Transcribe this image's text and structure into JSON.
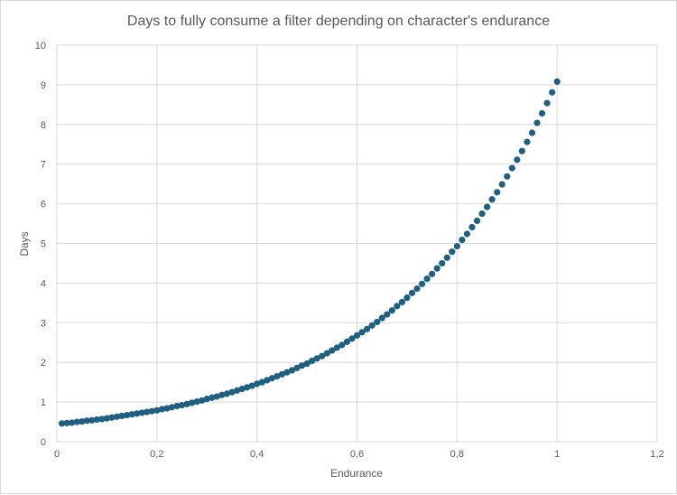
{
  "chart_data": {
    "type": "scatter",
    "title": "Days to fully consume a filter depending on character's endurance",
    "xlabel": "Endurance",
    "ylabel": "Days",
    "xlim": [
      0,
      1.2
    ],
    "ylim": [
      0,
      10
    ],
    "x_ticks": [
      0,
      0.2,
      0.4,
      0.6,
      0.8,
      1,
      1.2
    ],
    "x_tick_labels": [
      "0",
      "0,2",
      "0,4",
      "0,6",
      "0,8",
      "1",
      "1,2"
    ],
    "y_ticks": [
      0,
      1,
      2,
      3,
      4,
      5,
      6,
      7,
      8,
      9,
      10
    ],
    "y_tick_labels": [
      "0",
      "1",
      "2",
      "3",
      "4",
      "5",
      "6",
      "7",
      "8",
      "9",
      "10"
    ],
    "grid": true,
    "legend": "none",
    "colors": {
      "marker": "#1f5f7f",
      "grid": "#d9d9d9",
      "text": "#595959"
    },
    "series": [
      {
        "name": "Days",
        "x": [
          0.01,
          0.02,
          0.03,
          0.04,
          0.05,
          0.06,
          0.07,
          0.08,
          0.09,
          0.1,
          0.11,
          0.12,
          0.13,
          0.14,
          0.15,
          0.16,
          0.17,
          0.18,
          0.19,
          0.2,
          0.21,
          0.22,
          0.23,
          0.24,
          0.25,
          0.26,
          0.27,
          0.28,
          0.29,
          0.3,
          0.31,
          0.32,
          0.33,
          0.34,
          0.35,
          0.36,
          0.37,
          0.38,
          0.39,
          0.4,
          0.41,
          0.42,
          0.43,
          0.44,
          0.45,
          0.46,
          0.47,
          0.48,
          0.49,
          0.5,
          0.51,
          0.52,
          0.53,
          0.54,
          0.55,
          0.56,
          0.57,
          0.58,
          0.59,
          0.6,
          0.61,
          0.62,
          0.63,
          0.64,
          0.65,
          0.66,
          0.67,
          0.68,
          0.69,
          0.7,
          0.71,
          0.72,
          0.73,
          0.74,
          0.75,
          0.76,
          0.77,
          0.78,
          0.79,
          0.8,
          0.81,
          0.82,
          0.83,
          0.84,
          0.85,
          0.86,
          0.87,
          0.88,
          0.89,
          0.9,
          0.91,
          0.92,
          0.93,
          0.94,
          0.95,
          0.96,
          0.97,
          0.98,
          0.99,
          1.0
        ],
        "y": [
          0.46,
          0.47,
          0.48,
          0.5,
          0.51,
          0.53,
          0.54,
          0.56,
          0.57,
          0.59,
          0.61,
          0.63,
          0.65,
          0.67,
          0.69,
          0.71,
          0.73,
          0.75,
          0.77,
          0.79,
          0.82,
          0.84,
          0.87,
          0.9,
          0.92,
          0.95,
          0.98,
          1.01,
          1.04,
          1.08,
          1.11,
          1.14,
          1.18,
          1.21,
          1.25,
          1.29,
          1.33,
          1.37,
          1.41,
          1.46,
          1.5,
          1.55,
          1.6,
          1.65,
          1.7,
          1.75,
          1.8,
          1.86,
          1.92,
          1.97,
          2.04,
          2.1,
          2.16,
          2.23,
          2.3,
          2.37,
          2.44,
          2.52,
          2.6,
          2.68,
          2.76,
          2.84,
          2.93,
          3.02,
          3.12,
          3.21,
          3.31,
          3.42,
          3.52,
          3.63,
          3.75,
          3.86,
          3.98,
          4.11,
          4.23,
          4.37,
          4.5,
          4.64,
          4.79,
          4.93,
          5.09,
          5.24,
          5.41,
          5.57,
          5.75,
          5.92,
          6.11,
          6.29,
          6.49,
          6.69,
          6.9,
          7.11,
          7.33,
          7.56,
          7.79,
          8.04,
          8.28,
          8.54,
          8.81,
          9.08
        ]
      }
    ]
  }
}
